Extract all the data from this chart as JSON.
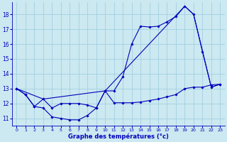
{
  "title": "Graphe des températures (°c)",
  "bg_color": "#cce8f0",
  "grid_color": "#99cce0",
  "line_color": "#0000bb",
  "xlim": [
    -0.5,
    23.5
  ],
  "ylim": [
    10.5,
    18.8
  ],
  "yticks": [
    11,
    12,
    13,
    14,
    15,
    16,
    17,
    18
  ],
  "xticks": [
    0,
    1,
    2,
    3,
    4,
    5,
    6,
    7,
    8,
    9,
    10,
    11,
    12,
    13,
    14,
    15,
    16,
    17,
    18,
    19,
    20,
    21,
    22,
    23
  ],
  "s1_x": [
    0,
    1,
    2,
    3,
    4,
    5,
    6,
    7,
    8,
    9,
    10,
    11,
    12,
    13,
    14,
    15,
    16,
    17,
    18,
    19,
    20,
    21,
    22,
    23
  ],
  "s1_y": [
    13.0,
    12.6,
    11.8,
    11.7,
    11.1,
    11.0,
    10.9,
    10.9,
    11.2,
    11.7,
    12.85,
    12.05,
    12.05,
    12.05,
    12.1,
    12.2,
    12.3,
    12.45,
    12.6,
    13.0,
    13.1,
    13.1,
    13.25,
    13.3
  ],
  "s2_x": [
    0,
    1,
    2,
    3,
    4,
    5,
    6,
    7,
    8,
    9,
    10,
    11,
    12,
    13,
    14,
    15,
    16,
    17,
    18,
    19,
    20,
    21,
    22,
    23
  ],
  "s2_y": [
    13.0,
    12.6,
    11.8,
    12.3,
    11.7,
    12.0,
    12.0,
    12.0,
    11.9,
    11.7,
    12.85,
    12.85,
    13.8,
    16.0,
    17.2,
    17.15,
    17.2,
    17.5,
    17.85,
    18.55,
    18.0,
    15.5,
    13.1,
    13.3
  ],
  "s3_x": [
    0,
    3,
    10,
    19,
    20,
    22,
    23
  ],
  "s3_y": [
    13.0,
    12.3,
    12.85,
    18.55,
    18.0,
    13.1,
    13.3
  ]
}
